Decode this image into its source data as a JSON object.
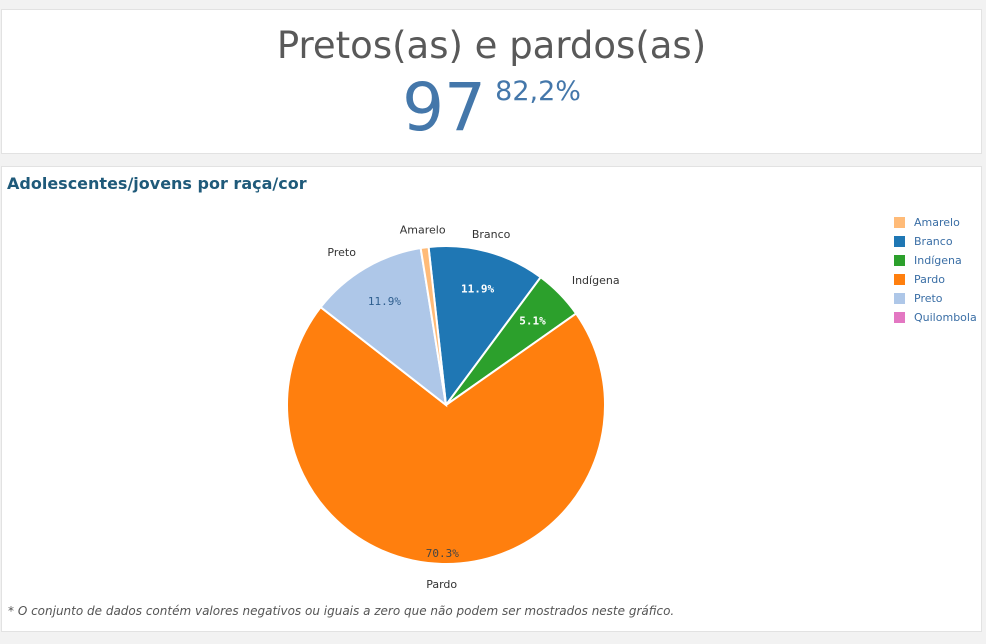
{
  "kpi": {
    "title": "Pretos(as) e pardos(as)",
    "value": "97",
    "percent": "82,2%",
    "color": "#4477aa"
  },
  "chart_card": {
    "title": "Adolescentes/jovens por raça/cor",
    "footnote": "* O conjunto de dados contém valores negativos ou iguais a zero que não podem ser mostrados neste gráfico."
  },
  "chart_data": {
    "type": "pie",
    "title": "Adolescentes/jovens por raça/cor",
    "slices": [
      {
        "name": "Branco",
        "value": 11.9,
        "label": "11.9%",
        "color": "#1f77b4"
      },
      {
        "name": "Indígena",
        "value": 5.1,
        "label": "5.1%",
        "color": "#2ca02c"
      },
      {
        "name": "Pardo",
        "value": 70.3,
        "label": "70.3%",
        "color": "#ff7f0e"
      },
      {
        "name": "Preto",
        "value": 11.9,
        "label": "11.9%",
        "color": "#aec7e8"
      },
      {
        "name": "Amarelo",
        "value": 0.8,
        "label": "",
        "color": "#ffbb78"
      }
    ],
    "legend": {
      "placement": "top-right",
      "items": [
        {
          "name": "Amarelo",
          "color": "#ffbb78"
        },
        {
          "name": "Branco",
          "color": "#1f77b4"
        },
        {
          "name": "Indígena",
          "color": "#2ca02c"
        },
        {
          "name": "Pardo",
          "color": "#ff7f0e"
        },
        {
          "name": "Preto",
          "color": "#aec7e8"
        },
        {
          "name": "Quilombola",
          "color": "#e377c2"
        }
      ]
    }
  }
}
